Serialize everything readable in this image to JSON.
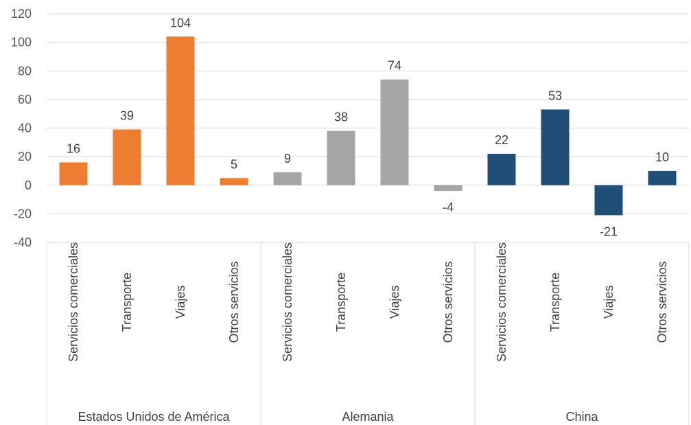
{
  "chart_data": {
    "type": "bar",
    "title": "",
    "xlabel": "",
    "ylabel": "",
    "ylim": [
      -40,
      120
    ],
    "yticks": [
      120,
      100,
      80,
      60,
      40,
      20,
      0,
      -20,
      -40
    ],
    "grid": true,
    "legend": "none",
    "groups": [
      {
        "name": "Estados Unidos de América",
        "color": "#ED7D31",
        "categories": [
          "Servicios comerciales",
          "Transporte",
          "Viajes",
          "Otros servicios"
        ],
        "values": [
          16,
          39,
          104,
          5
        ]
      },
      {
        "name": "Alemania",
        "color": "#A5A5A5",
        "categories": [
          "Servicios comerciales",
          "Transporte",
          "Viajes",
          "Otros servicios"
        ],
        "values": [
          9,
          38,
          74,
          -4
        ]
      },
      {
        "name": "China",
        "color": "#1F4E79",
        "categories": [
          "Servicios comerciales",
          "Transporte",
          "Viajes",
          "Otros servicios"
        ],
        "values": [
          22,
          53,
          -21,
          10
        ]
      }
    ]
  }
}
